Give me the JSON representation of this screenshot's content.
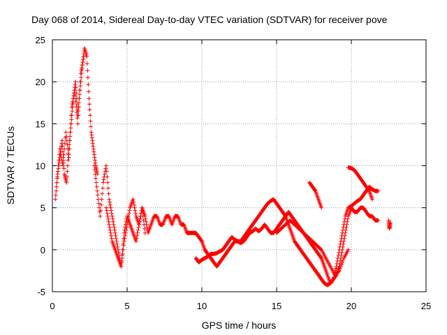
{
  "chart_data": {
    "type": "scatter",
    "title": "Day 068 of 2014, Sidereal Day-to-day VTEC variation (SDTVAR) for receiver pove",
    "xlabel": "GPS time / hours",
    "ylabel": "SDTVAR / TECUs",
    "xlim": [
      0,
      25
    ],
    "ylim": [
      -5,
      25
    ],
    "xticks": [
      0,
      5,
      10,
      15,
      20,
      25
    ],
    "yticks": [
      -5,
      0,
      5,
      10,
      15,
      20,
      25
    ],
    "grid": true,
    "marker": "+",
    "color": "#ff0000",
    "series": [
      {
        "name": "SDTVAR",
        "segments": [
          {
            "x": [
              0.2,
              0.35,
              0.5,
              0.65,
              0.8,
              0.95,
              1.1,
              1.25,
              1.4,
              1.55,
              1.7,
              1.85,
              2.0,
              2.15,
              2.3,
              2.45,
              2.6,
              2.75,
              2.9,
              3.0
            ],
            "y": [
              6,
              9,
              11,
              13,
              9,
              8,
              12,
              15,
              18,
              20,
              16,
              19,
              22,
              24,
              23,
              18,
              14,
              12,
              10,
              9
            ]
          },
          {
            "x": [
              0.3,
              0.5,
              0.7,
              0.9,
              1.1,
              1.3,
              1.5,
              1.7,
              1.9,
              2.1
            ],
            "y": [
              8,
              12,
              10,
              14,
              11,
              17,
              19,
              15,
              21,
              23
            ]
          },
          {
            "x": [
              2.8,
              3.0,
              3.2,
              3.4,
              3.6,
              3.8,
              4.0,
              4.2,
              4.4,
              4.6,
              4.8,
              5.0,
              5.2,
              5.4,
              5.6,
              5.8,
              6.0,
              6.2
            ],
            "y": [
              10,
              7,
              4,
              8,
              10,
              6,
              4,
              2,
              0,
              -2,
              1,
              3,
              5,
              6,
              4,
              3,
              5,
              2
            ]
          },
          {
            "x": [
              3.6,
              3.8,
              4.0,
              4.2,
              4.4,
              4.6,
              4.8,
              5.0,
              5.2,
              5.4,
              5.6,
              5.8,
              6.0,
              6.2,
              6.4,
              6.6,
              6.8,
              7.0,
              7.2,
              7.4,
              7.6,
              7.8,
              8.0,
              8.2,
              8.4,
              8.6,
              8.8,
              9.0
            ],
            "y": [
              5,
              3,
              1,
              0,
              -1,
              -2,
              2,
              4,
              3,
              2,
              1,
              3,
              5,
              4,
              2,
              3,
              4,
              4,
              3,
              3,
              4,
              4,
              3,
              4,
              4,
              3,
              3,
              2
            ]
          },
          {
            "x": [
              9.0,
              9.2,
              9.4,
              9.6,
              9.8,
              10.0,
              10.2,
              10.4,
              10.6,
              10.8,
              11.0,
              11.2,
              11.4,
              11.6,
              11.8,
              12.0,
              12.2,
              12.4,
              12.6,
              12.8,
              13.0,
              13.2,
              13.4,
              13.6,
              13.8,
              14.0,
              14.2,
              14.4,
              14.6,
              14.8,
              15.0,
              15.2,
              15.4,
              15.6,
              15.8,
              16.0,
              16.2,
              16.4,
              16.6,
              16.8,
              17.0,
              17.2,
              17.4,
              17.6,
              17.8,
              18.0,
              18.2,
              18.4,
              18.6,
              18.8,
              19.0,
              19.2,
              19.4,
              19.6,
              19.8,
              20.0,
              20.2,
              20.4,
              20.6,
              20.8,
              21.0,
              21.2,
              21.4,
              21.6,
              21.8
            ],
            "y": [
              2,
              2,
              2,
              2,
              1.5,
              1,
              0,
              -0.5,
              -1,
              -1.5,
              -2,
              -1.5,
              -1,
              -0.5,
              0,
              0.5,
              1,
              1,
              1,
              1.5,
              2,
              2.5,
              3,
              3.5,
              4,
              4.5,
              5,
              5.5,
              5.8,
              6,
              5.5,
              5,
              4.5,
              4,
              3,
              2,
              1,
              0.5,
              0,
              -0.5,
              -1,
              -1.5,
              -2,
              -2.5,
              -3,
              -3.5,
              -4,
              -4.2,
              -4,
              -3.5,
              -2,
              0,
              2,
              4,
              5,
              5.2,
              5.5,
              5.8,
              6,
              6.5,
              7,
              7.5,
              7.2,
              7,
              7
            ]
          },
          {
            "x": [
              9.6,
              9.8,
              10.0,
              10.2,
              10.4,
              10.6,
              10.8,
              11.0,
              11.2,
              11.4,
              11.6,
              11.8,
              12.0,
              12.2,
              12.4,
              12.6,
              12.8,
              13.0,
              13.2,
              13.4,
              13.6,
              13.8,
              14.0,
              14.2,
              14.4,
              14.6,
              14.8,
              15.0,
              15.2,
              15.4,
              15.6,
              15.8,
              16.0,
              16.2,
              16.4,
              16.6,
              16.8,
              17.0,
              17.2,
              17.4,
              17.6,
              17.8,
              18.0,
              18.2,
              18.4,
              18.6,
              18.8,
              19.0,
              19.2,
              19.4,
              19.6,
              19.8,
              20.0,
              20.2,
              20.4,
              20.6,
              20.8,
              21.0,
              21.2,
              21.4,
              21.6,
              21.8
            ],
            "y": [
              -1,
              -1.5,
              -1.2,
              -1,
              -0.8,
              -0.5,
              -0.5,
              -0.4,
              -0.2,
              0,
              0.5,
              1,
              1.5,
              1.2,
              1,
              0.8,
              1,
              1.5,
              2,
              2.2,
              2.5,
              2.2,
              2.5,
              3,
              2.5,
              2,
              2,
              2.5,
              3,
              3.5,
              4,
              4.5,
              4,
              3.5,
              3,
              2.5,
              2,
              1.5,
              1,
              0.5,
              0,
              -0.5,
              -1,
              -2,
              -3,
              -4,
              -3.5,
              -3,
              -2,
              0,
              2,
              4,
              5,
              4.5,
              4.5,
              5,
              5,
              4.5,
              4,
              4,
              3.5,
              3.5
            ]
          },
          {
            "x": [
              15.0,
              15.3,
              15.6,
              15.9,
              16.2,
              16.5,
              16.8,
              17.1,
              17.4,
              17.7,
              18.0,
              18.3,
              18.6,
              18.9,
              19.2,
              19.5,
              19.8
            ],
            "y": [
              2,
              2.5,
              3,
              3.5,
              3,
              2.5,
              2,
              1.5,
              1,
              0.5,
              0,
              -1,
              -2,
              -3,
              -2.5,
              -1,
              0
            ]
          },
          {
            "x": [
              17.2,
              17.4,
              17.6,
              17.8,
              18.0
            ],
            "y": [
              8,
              7.5,
              7,
              6,
              5
            ]
          },
          {
            "x": [
              19.8,
              20.0,
              20.2,
              20.4,
              20.6,
              20.8,
              21.0,
              21.2,
              21.4
            ],
            "y": [
              9.8,
              9.7,
              9.5,
              9,
              8.5,
              8,
              7.5,
              7,
              6
            ]
          },
          {
            "x": [
              22.5,
              22.55,
              22.6
            ],
            "y": [
              3.5,
              2.5,
              3.2
            ]
          }
        ]
      }
    ]
  }
}
